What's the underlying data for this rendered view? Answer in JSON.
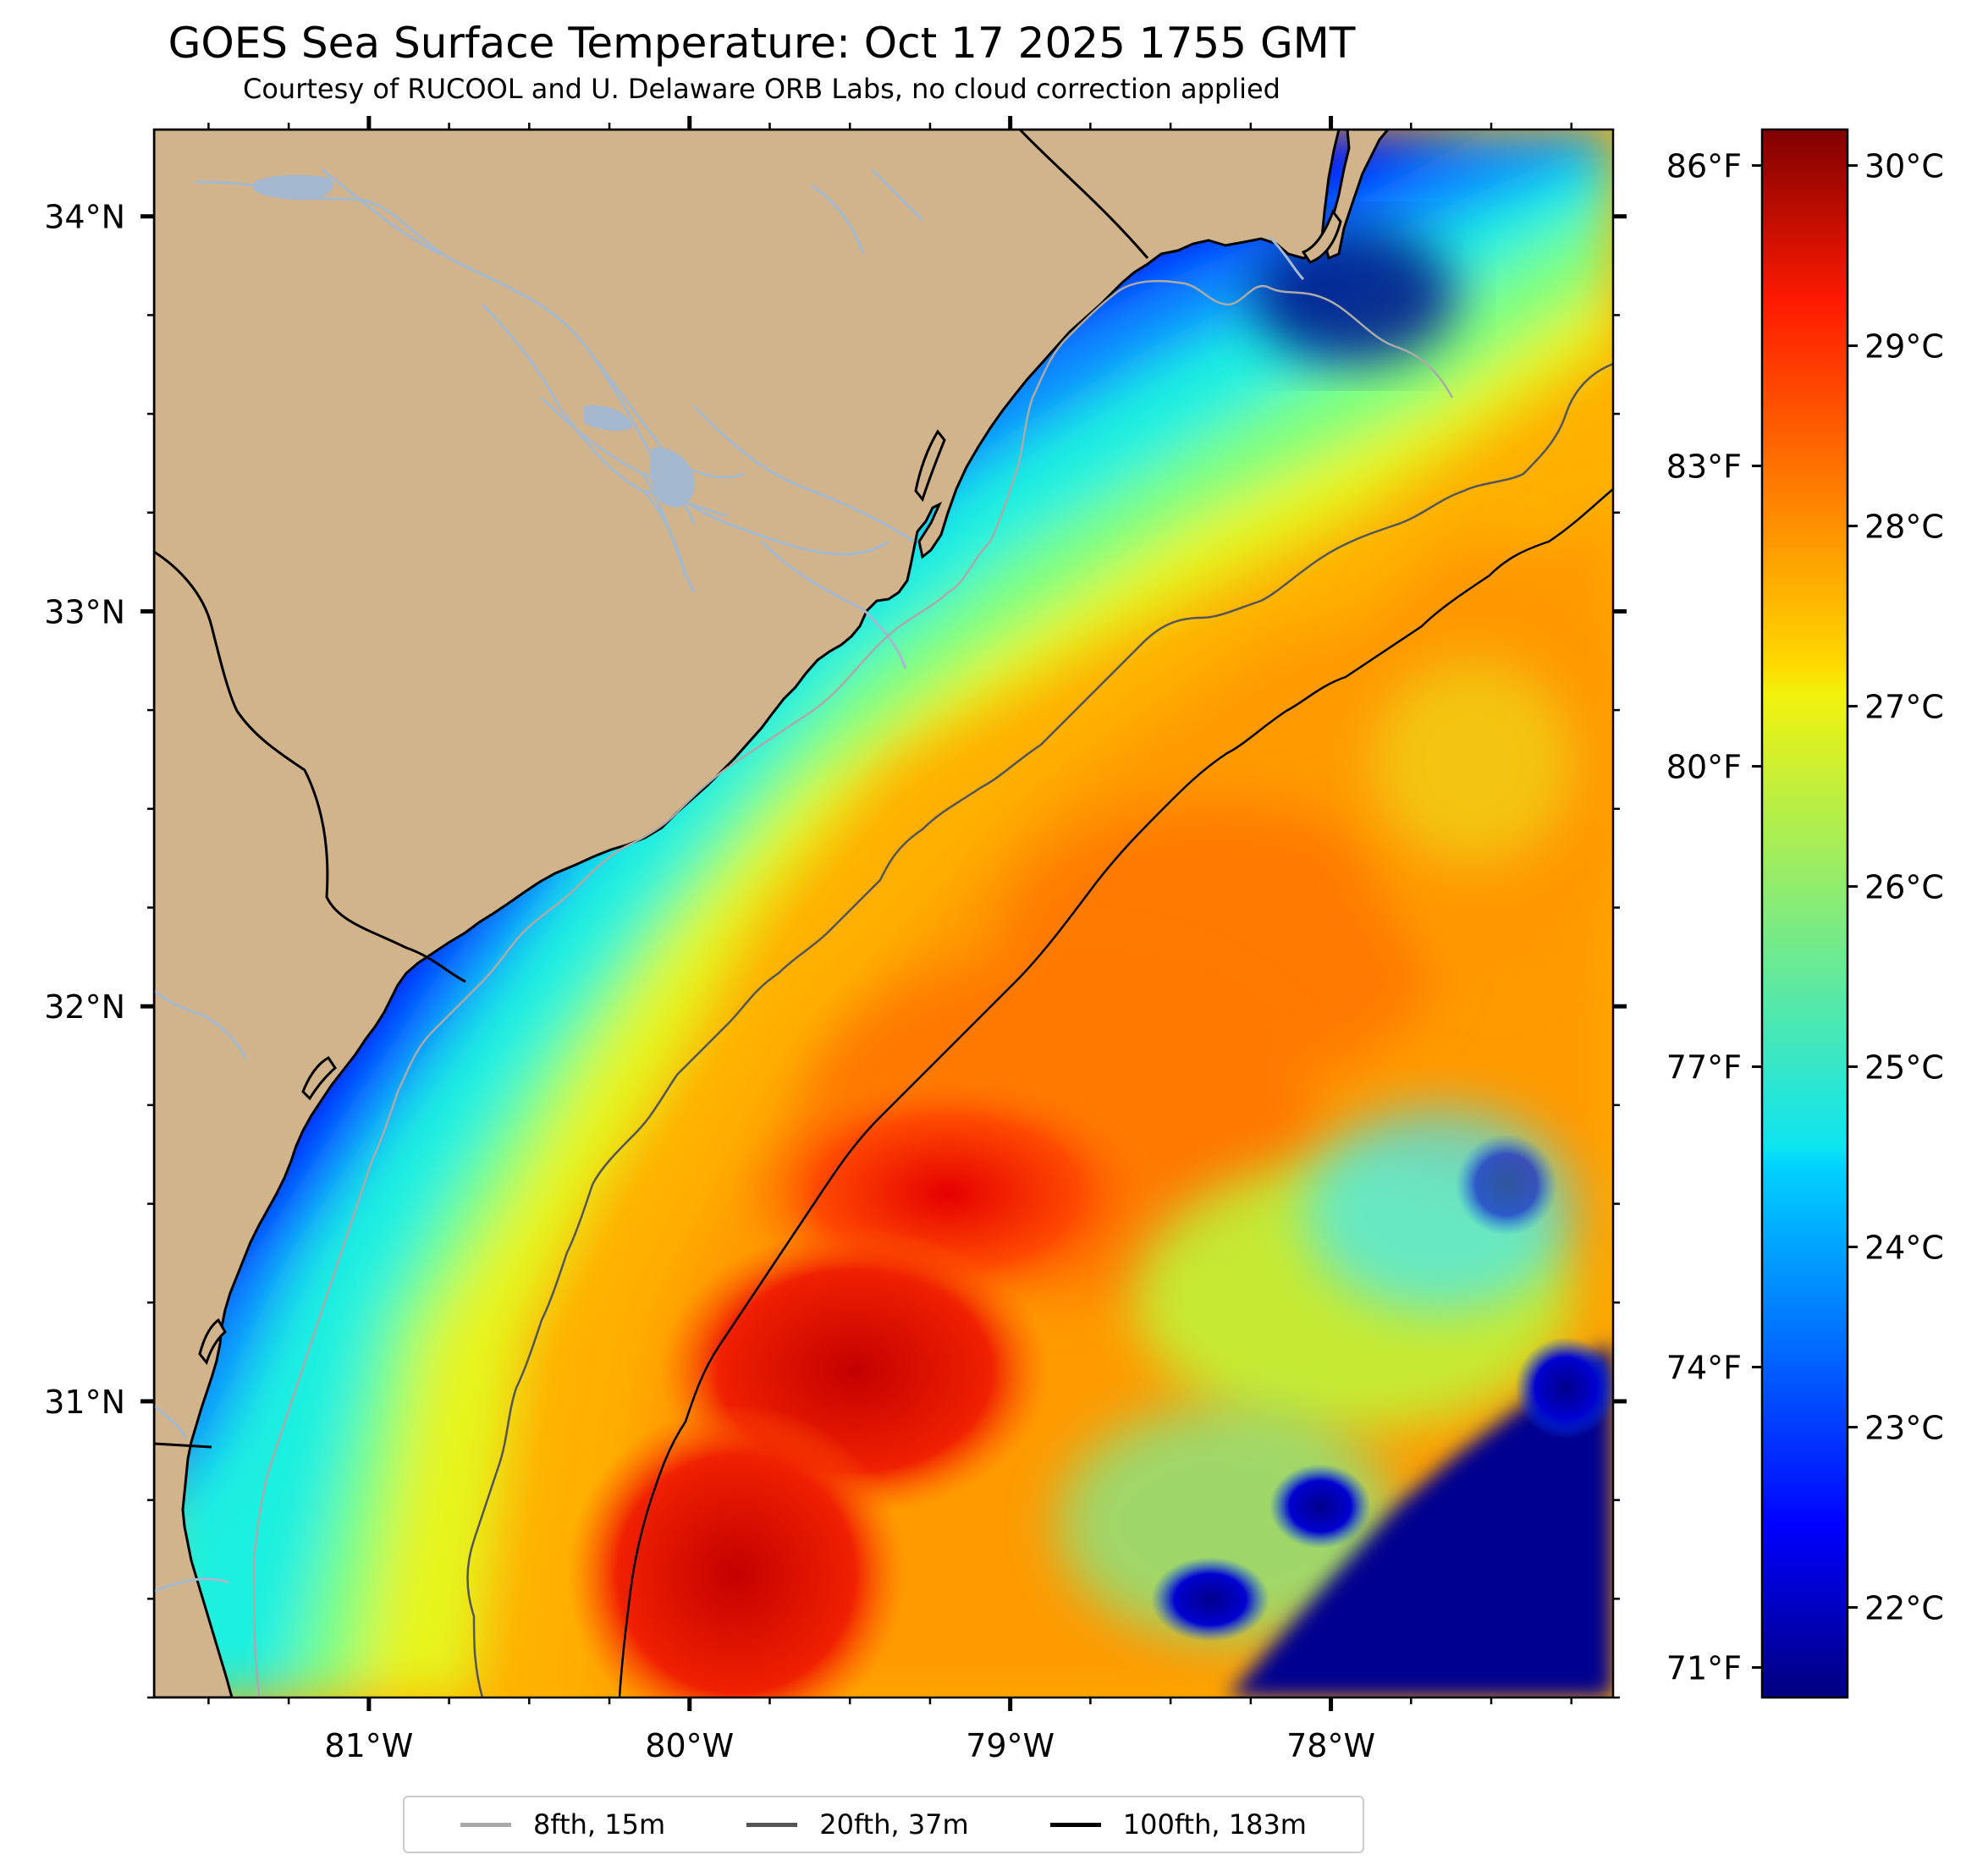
{
  "title": "GOES Sea Surface Temperature: Oct 17 2025 1755 GMT",
  "subtitle": "Courtesy of RUCOOL and U. Delaware ORB Labs, no cloud correction applied",
  "map": {
    "lon_range": [
      -81.67,
      -77.12
    ],
    "lat_range": [
      30.25,
      34.22
    ],
    "lon_ticks": [
      -81,
      -80,
      -79,
      -78
    ],
    "lon_tick_labels": [
      "81°W",
      "80°W",
      "79°W",
      "78°W"
    ],
    "lat_ticks": [
      31,
      32,
      33,
      34
    ],
    "lat_tick_labels": [
      "31°N",
      "32°N",
      "33°N",
      "34°N"
    ],
    "land_color": "#d2b48c",
    "coast_color": "#000000",
    "river_color": "#a4b9cf"
  },
  "colorbar": {
    "cmap": "jet",
    "range_c": [
      21.5,
      30.2
    ],
    "celsius_ticks": [
      22,
      23,
      24,
      25,
      26,
      27,
      28,
      29,
      30
    ],
    "celsius_labels": [
      "22°C",
      "23°C",
      "24°C",
      "25°C",
      "26°C",
      "27°C",
      "28°C",
      "29°C",
      "30°C"
    ],
    "fahrenheit_ticks": [
      71,
      74,
      77,
      80,
      83,
      86
    ],
    "fahrenheit_labels": [
      "71°F",
      "74°F",
      "77°F",
      "80°F",
      "83°F",
      "86°F"
    ]
  },
  "legend": {
    "items": [
      {
        "label": "8fth, 15m",
        "color": "#aaaaaa"
      },
      {
        "label": "20fth, 37m",
        "color": "#555555"
      },
      {
        "label": "100fth, 183m",
        "color": "#000000"
      }
    ]
  }
}
